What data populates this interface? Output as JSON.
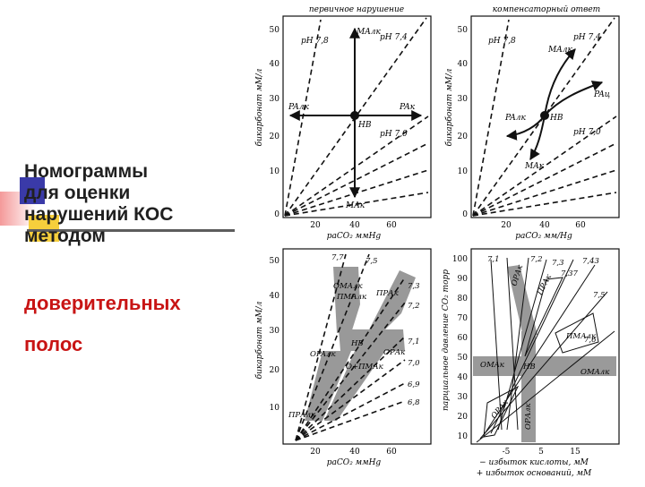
{
  "slide": {
    "title_lines": [
      "Номограммы",
      "для оценки",
      "нарушений КОС",
      "методом"
    ],
    "subtitle_line1": "доверительных",
    "subtitle_line2": "полос",
    "colors": {
      "title": "#202020",
      "subtitle": "#c81414",
      "accent_blue": "#3a3aa8",
      "accent_yellow": "#f6cf3c"
    }
  },
  "figure": {
    "panel1": {
      "title": "первичное нарушение",
      "ylabel": "бикарбонат мМ/л",
      "yticks": [
        "50",
        "40",
        "30",
        "20",
        "10",
        "0"
      ],
      "xticks": [
        "20",
        "40",
        "60"
      ],
      "xlabel": "paCO₂ ммHg",
      "labels": {
        "ph78": "pH 7,8",
        "ph74": "pH 7,4",
        "ph70": "pH 7,0",
        "malk": "MAлк",
        "rak": "PAк",
        "ralk": "PAлк",
        "mak": "MAк",
        "nv": "HB"
      }
    },
    "panel2": {
      "title": "компенсаторный ответ",
      "ylabel": "бикарбонат мМ/л",
      "yticks": [
        "50",
        "40",
        "30",
        "20",
        "10",
        "0"
      ],
      "xticks": [
        "20",
        "40",
        "60"
      ],
      "xlabel": "paCO₂ мм/Hg",
      "labels": {
        "ph78": "pH 7,8",
        "ph74": "pH 7,4",
        "ph70": "pH 7,0",
        "malk": "MAлк",
        "rak": "PAц",
        "ralk": "PAлк",
        "mak": "MAк",
        "nv": "HB"
      }
    },
    "panel3": {
      "ylabel": "бикарбонат мМ/л",
      "yticks": [
        "50",
        "40",
        "30",
        "20",
        "10"
      ],
      "xticks": [
        "20",
        "40",
        "60"
      ],
      "xlabel": "paCO₂ ммHg",
      "ph_top": [
        "7,7",
        "7,5"
      ],
      "ph_right": [
        "7,3",
        "7,2",
        "7,1",
        "7,0",
        "6,9",
        "6,8"
      ],
      "bands": [
        "ОМАлк",
        "ПМАлк",
        "ПРАк",
        "HB",
        "OPAлк",
        "ОРАк",
        "О+ПМАк",
        "ПРАлк"
      ]
    },
    "panel4": {
      "ylabel": "парциальное давление CO₂ торр",
      "yticks": [
        "100",
        "90",
        "80",
        "70",
        "60",
        "50",
        "40",
        "30",
        "20",
        "10"
      ],
      "xticks": [
        "-5",
        "5",
        "15"
      ],
      "xlabel_line1": "− избыток кислоты, мМ",
      "xlabel_line2": "+ избыток оснований, мМ",
      "ph_top": [
        "7,1",
        "7,2",
        "7,3",
        "7,37",
        "7,43"
      ],
      "ph_right": [
        "7,5",
        "7,6"
      ],
      "labels": {
        "ora": "ОРАк",
        "oma_l": "OMAк",
        "oma_r": "OMAлк",
        "nv": "НВ",
        "pma": "ПМАлк",
        "pra": "ПРАк",
        "ora_low": "ОРАлк",
        "band_top": "ОРАк"
      }
    }
  }
}
